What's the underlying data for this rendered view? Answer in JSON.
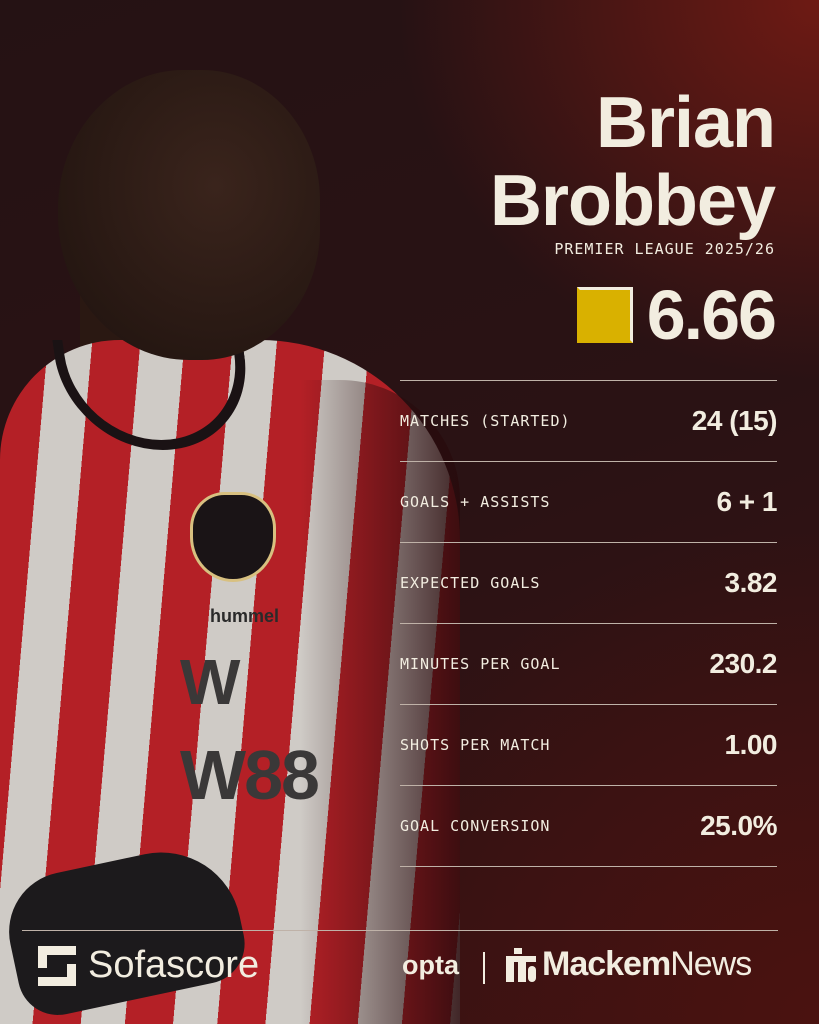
{
  "player": {
    "first_name": "Brian",
    "last_name": "Brobbey",
    "competition": "PREMIER LEAGUE 2025/26",
    "rating": "6.66",
    "rating_color": "#d9b100"
  },
  "photo": {
    "sponsor_top": "W",
    "sponsor_bottom": "W88",
    "kit_brand": "hummel"
  },
  "stats": [
    {
      "label": "MATCHES (STARTED)",
      "value": "24 (15)"
    },
    {
      "label": "GOALS + ASSISTS",
      "value": "6 + 1"
    },
    {
      "label": "EXPECTED GOALS",
      "value": "3.82"
    },
    {
      "label": "MINUTES PER GOAL",
      "value": "230.2"
    },
    {
      "label": "SHOTS PER MATCH",
      "value": "1.00"
    },
    {
      "label": "GOAL CONVERSION",
      "value": "25.0%"
    }
  ],
  "footer": {
    "sofascore": "Sofascore",
    "opta": "opta",
    "mackem_bold": "Mackem",
    "mackem_light": "News"
  }
}
